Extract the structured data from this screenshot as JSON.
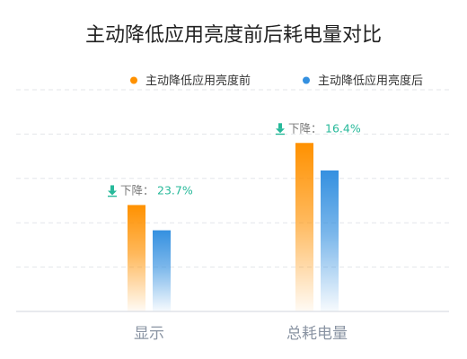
{
  "chart_data": {
    "type": "bar",
    "title": "主动降低应用亮度前后耗电量对比",
    "categories": [
      "显示",
      "总耗电量"
    ],
    "series": [
      {
        "name": "主动降低应用亮度前",
        "values": [
          2.4,
          3.8
        ],
        "color": "#ff9100"
      },
      {
        "name": "主动降低应用亮度后",
        "values": [
          1.83,
          3.18
        ],
        "color": "#3490e0"
      }
    ],
    "ylim": [
      0,
      5
    ],
    "grid": true,
    "legend_position": "top-right",
    "annotations": [
      {
        "category": "显示",
        "label": "下降：",
        "value": "23.7%",
        "icon": "down-arrow-icon",
        "color": "#27b99a"
      },
      {
        "category": "总耗电量",
        "label": "下降：",
        "value": "16.4%",
        "icon": "down-arrow-icon",
        "color": "#27b99a"
      }
    ]
  }
}
